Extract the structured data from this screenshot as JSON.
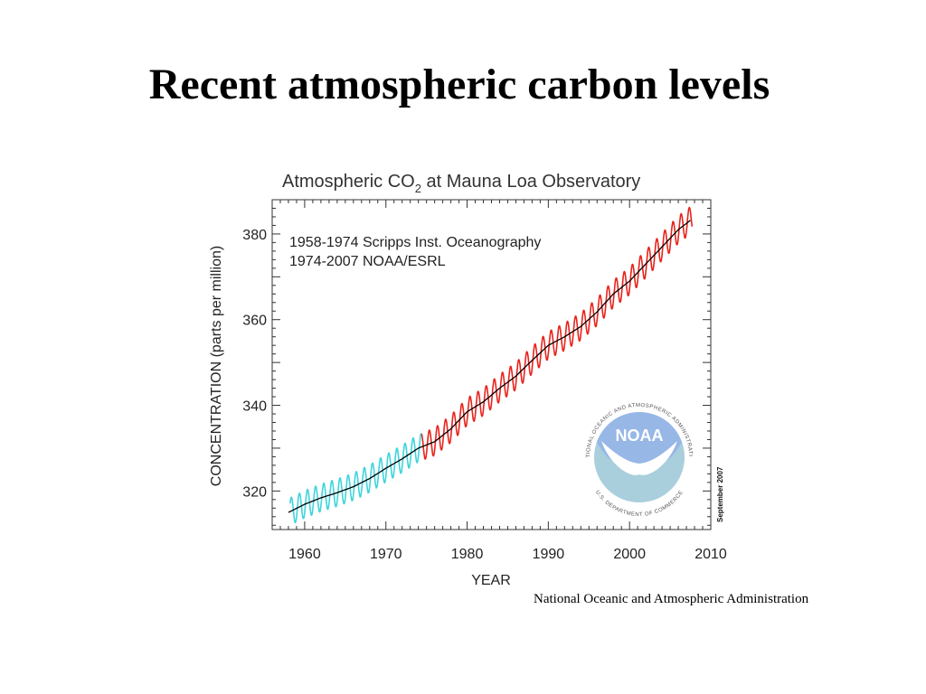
{
  "slide": {
    "title": "Recent atmospheric carbon levels",
    "caption": "National Oceanic and Atmospheric Administration"
  },
  "logo": {
    "name": "NOAA",
    "ring_text": "NATIONAL OCEANIC AND ATMOSPHERIC ADMINISTRATION",
    "ring_text_bottom": "U.S. DEPARTMENT OF COMMERCE",
    "colors": {
      "sky": "#97b7e6",
      "water": "#a9cfdc",
      "bird": "#ffffff"
    }
  },
  "chart_data": {
    "type": "line",
    "title_prefix": "Atmospheric CO",
    "title_sub": "2",
    "title_suffix": " at Mauna Loa Observatory",
    "xlabel": "YEAR",
    "ylabel": "CONCENTRATION (parts per million)",
    "xlim": [
      1956,
      2010
    ],
    "ylim": [
      311,
      388
    ],
    "x_ticks": [
      1960,
      1970,
      1980,
      1990,
      2000,
      2010
    ],
    "y_ticks": [
      320,
      340,
      360,
      380
    ],
    "legend": [
      "1958-1974 Scripps Inst. Oceanography",
      "1974-2007 NOAA/ESRL"
    ],
    "legend_placement": "top-left",
    "side_note": "September 2007",
    "grid": false,
    "seasonal_amplitude_ppm": 3.2,
    "series": [
      {
        "name": "1958-1974 Scripps Inst. Oceanography",
        "color": "#3fd4dc",
        "kind": "monthly",
        "x_range": [
          1958.2,
          1974.4
        ]
      },
      {
        "name": "1974-2007 NOAA/ESRL",
        "color": "#e8231c",
        "kind": "monthly",
        "x_range": [
          1974.4,
          2007.7
        ]
      },
      {
        "name": "",
        "color": "#000000",
        "kind": "trend",
        "x": [
          1958,
          1960,
          1962,
          1964,
          1966,
          1968,
          1970,
          1972,
          1974,
          1976,
          1978,
          1980,
          1982,
          1984,
          1986,
          1988,
          1990,
          1992,
          1994,
          1996,
          1998,
          2000,
          2002,
          2004,
          2006,
          2007.7
        ],
        "y": [
          315.0,
          316.9,
          318.4,
          319.6,
          321.0,
          322.9,
          325.3,
          327.5,
          330.0,
          331.5,
          334.5,
          338.5,
          340.8,
          344.0,
          346.8,
          350.5,
          354.0,
          356.0,
          358.4,
          361.8,
          366.0,
          369.0,
          373.0,
          377.0,
          381.0,
          383.5
        ]
      }
    ]
  }
}
